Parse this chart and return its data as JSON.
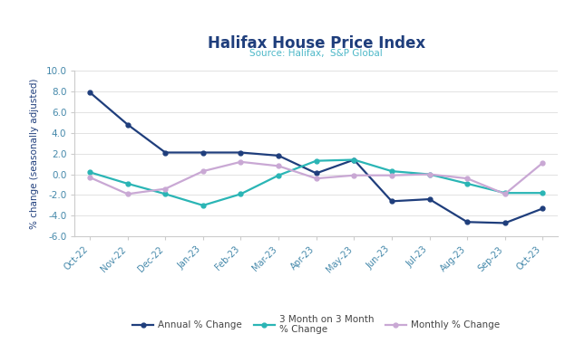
{
  "title": "Halifax House Price Index",
  "subtitle": "Source: Halifax,  S&P Global",
  "ylabel": "% change (seasonally adjusted)",
  "categories": [
    "Oct-22",
    "Nov-22",
    "Dec-22",
    "Jan-23",
    "Feb-23",
    "Mar-23",
    "Apr-23",
    "May-23",
    "Jun-23",
    "Jul-23",
    "Aug-23",
    "Sep-23",
    "Oct-23"
  ],
  "annual": [
    7.9,
    4.8,
    2.1,
    2.1,
    2.1,
    1.8,
    0.1,
    1.4,
    -2.6,
    -2.4,
    -4.6,
    -4.7,
    -3.3
  ],
  "three_month": [
    0.2,
    -0.9,
    -1.9,
    -3.0,
    -1.9,
    -0.1,
    1.3,
    1.4,
    0.3,
    0.0,
    -0.9,
    -1.8,
    -1.8
  ],
  "monthly": [
    -0.3,
    -1.9,
    -1.4,
    0.3,
    1.2,
    0.8,
    -0.4,
    -0.1,
    -0.1,
    0.0,
    -0.4,
    -1.9,
    1.1
  ],
  "annual_color": "#1f3e7c",
  "three_month_color": "#2ab5b5",
  "monthly_color": "#c9a8d4",
  "ylim": [
    -6.0,
    10.0
  ],
  "yticks": [
    -6.0,
    -4.0,
    -2.0,
    0.0,
    2.0,
    4.0,
    6.0,
    8.0,
    10.0
  ],
  "title_color": "#1f3e7c",
  "subtitle_color": "#4db8c8",
  "ylabel_color": "#1f3e7c",
  "tick_color": "#4488aa",
  "background_color": "#ffffff",
  "legend_labels": [
    "Annual % Change",
    "3 Month on 3 Month\n% Change",
    "Monthly % Change"
  ]
}
